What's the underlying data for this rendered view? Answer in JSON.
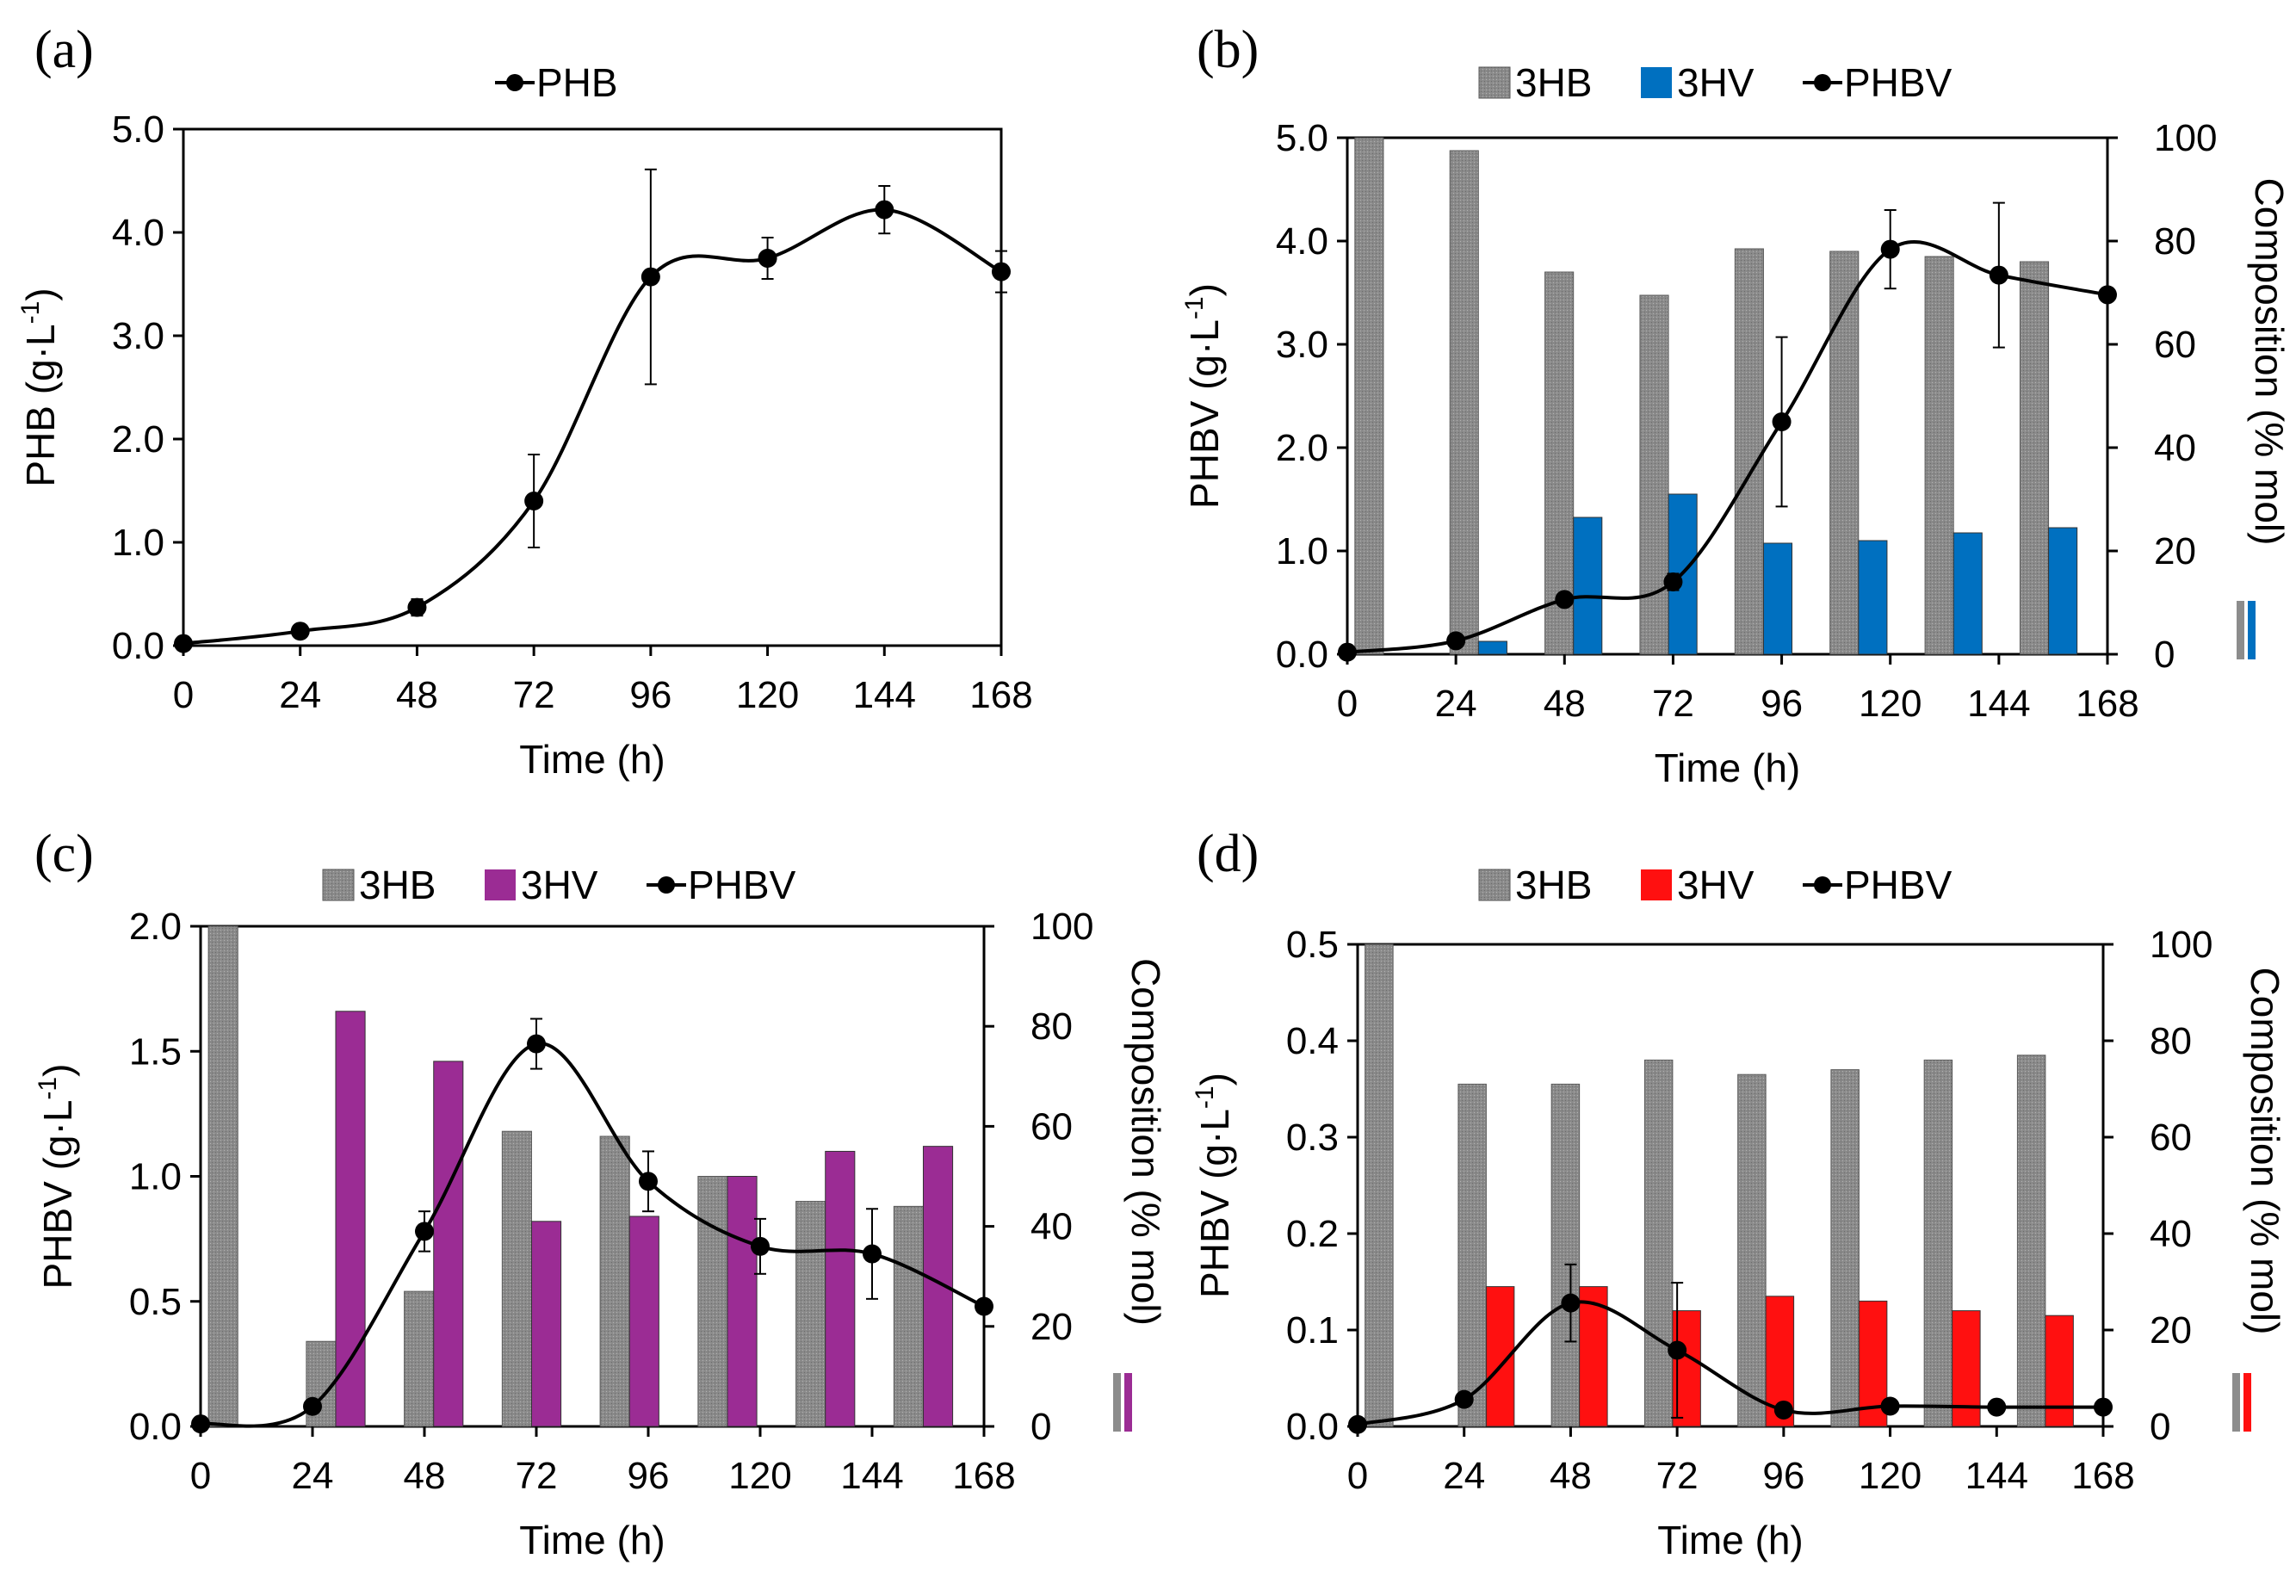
{
  "colors": {
    "hb_fill": "#8c8c8c",
    "hv_b": "#0070c0",
    "hv_c": "#9b2c94",
    "hv_d": "#ff1010",
    "line": "#000000"
  },
  "chart_data": [
    {
      "id": "a",
      "type": "line",
      "panel_label": "(a)",
      "title": "",
      "xlabel": "Time (h)",
      "ylabel_main": "PHB (g·L",
      "ylabel_sup": "-1",
      "ylabel_close": ")",
      "xticks": [
        "0",
        "24",
        "48",
        "72",
        "96",
        "120",
        "144",
        "168"
      ],
      "yticks": [
        "0.0",
        "1.0",
        "2.0",
        "3.0",
        "4.0",
        "5.0"
      ],
      "ylim": [
        0,
        5
      ],
      "xlim": [
        0,
        168
      ],
      "legend": [
        {
          "kind": "line",
          "label": "PHB"
        }
      ],
      "line": {
        "name": "PHB",
        "x": [
          0,
          24,
          48,
          72,
          96,
          120,
          144,
          168
        ],
        "y": [
          0.02,
          0.14,
          0.37,
          1.4,
          3.57,
          3.75,
          4.22,
          3.62
        ],
        "err": [
          0,
          0.03,
          0.08,
          0.45,
          1.04,
          0.2,
          0.23,
          0.2
        ]
      }
    },
    {
      "id": "b",
      "type": "bar+line",
      "panel_label": "(b)",
      "title": "",
      "xlabel": "Time (h)",
      "ylabel_main": "PHBV (g·L",
      "ylabel_sup": "-1",
      "ylabel_close": ")",
      "y2label": "Composition (% mol)",
      "xticks": [
        "0",
        "24",
        "48",
        "72",
        "96",
        "120",
        "144",
        "168"
      ],
      "yticks": [
        "0.0",
        "1.0",
        "2.0",
        "3.0",
        "4.0",
        "5.0"
      ],
      "y2ticks": [
        "0",
        "20",
        "40",
        "60",
        "80",
        "100"
      ],
      "ylim": [
        0,
        5
      ],
      "y2lim": [
        0,
        100
      ],
      "xlim": [
        0,
        168
      ],
      "legend": [
        {
          "kind": "hb",
          "label": "3HB"
        },
        {
          "kind": "hv",
          "label": "3HV"
        },
        {
          "kind": "line",
          "label": "PHBV"
        }
      ],
      "bars": {
        "hb": [
          100,
          97.5,
          74,
          69.5,
          78.5,
          78,
          77,
          76
        ],
        "hv": [
          0,
          2.5,
          26.5,
          31,
          21.5,
          22,
          23.5,
          24.5
        ]
      },
      "line": {
        "name": "PHBV",
        "x": [
          0,
          24,
          48,
          72,
          96,
          120,
          144,
          168
        ],
        "y": [
          0.02,
          0.13,
          0.53,
          0.7,
          2.25,
          3.92,
          3.67,
          3.48
        ],
        "err": [
          0,
          0.03,
          0.05,
          0.08,
          0.82,
          0.38,
          0.7,
          0
        ]
      }
    },
    {
      "id": "c",
      "type": "bar+line",
      "panel_label": "(c)",
      "title": "",
      "xlabel": "Time (h)",
      "ylabel_main": "PHBV (g·L",
      "ylabel_sup": "-1",
      "ylabel_close": ")",
      "y2label": "Composition (% mol)",
      "xticks": [
        "0",
        "24",
        "48",
        "72",
        "96",
        "120",
        "144",
        "168"
      ],
      "yticks": [
        "0.0",
        "0.5",
        "1.0",
        "1.5",
        "2.0"
      ],
      "y2ticks": [
        "0",
        "20",
        "40",
        "60",
        "80",
        "100"
      ],
      "ylim": [
        0,
        2
      ],
      "y2lim": [
        0,
        100
      ],
      "xlim": [
        0,
        168
      ],
      "legend": [
        {
          "kind": "hb",
          "label": "3HB"
        },
        {
          "kind": "hv",
          "label": "3HV"
        },
        {
          "kind": "line",
          "label": "PHBV"
        }
      ],
      "bars": {
        "hb": [
          100,
          17,
          27,
          59,
          58,
          50,
          45,
          44
        ],
        "hv": [
          0,
          83,
          73,
          41,
          42,
          50,
          55,
          56
        ]
      },
      "line": {
        "name": "PHBV",
        "x": [
          0,
          24,
          48,
          72,
          96,
          120,
          144,
          168
        ],
        "y": [
          0.01,
          0.08,
          0.78,
          1.53,
          0.98,
          0.72,
          0.69,
          0.48
        ],
        "err": [
          0,
          0,
          0.08,
          0.1,
          0.12,
          0.11,
          0.18,
          0
        ]
      }
    },
    {
      "id": "d",
      "type": "bar+line",
      "panel_label": "(d)",
      "title": "",
      "xlabel": "Time (h)",
      "ylabel_main": "PHBV (g·L",
      "ylabel_sup": "-1",
      "ylabel_close": ")",
      "y2label": "Composition (% mol)",
      "xticks": [
        "0",
        "24",
        "48",
        "72",
        "96",
        "120",
        "144",
        "168"
      ],
      "yticks": [
        "0.0",
        "0.1",
        "0.2",
        "0.3",
        "0.4",
        "0.5"
      ],
      "y2ticks": [
        "0",
        "20",
        "40",
        "60",
        "80",
        "100"
      ],
      "ylim": [
        0,
        0.5
      ],
      "y2lim": [
        0,
        100
      ],
      "xlim": [
        0,
        168
      ],
      "legend": [
        {
          "kind": "hb",
          "label": "3HB"
        },
        {
          "kind": "hv",
          "label": "3HV"
        },
        {
          "kind": "line",
          "label": "PHBV"
        }
      ],
      "bars": {
        "hb": [
          100,
          71,
          71,
          76,
          73,
          74,
          76,
          77
        ],
        "hv": [
          0,
          29,
          29,
          24,
          27,
          26,
          24,
          23
        ]
      },
      "line": {
        "name": "PHBV",
        "x": [
          0,
          24,
          48,
          72,
          96,
          120,
          144,
          168
        ],
        "y": [
          0.002,
          0.028,
          0.128,
          0.079,
          0.017,
          0.021,
          0.02,
          0.02
        ],
        "err": [
          0,
          0,
          0.04,
          0.07,
          0,
          0,
          0,
          0
        ]
      }
    }
  ]
}
